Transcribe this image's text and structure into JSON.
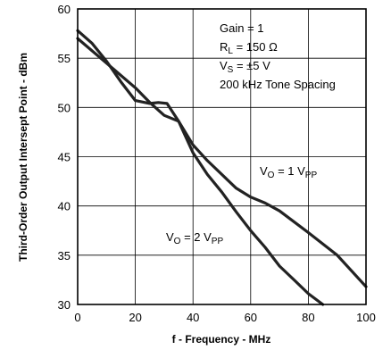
{
  "chart_data": {
    "type": "line",
    "title": "",
    "xlabel": "f - Frequency - MHz",
    "ylabel": "Third-Order Output Intersept Point - dBm",
    "xlim": [
      0,
      100
    ],
    "ylim": [
      30,
      60
    ],
    "x_ticks": [
      0,
      20,
      40,
      60,
      80,
      100
    ],
    "y_ticks": [
      30,
      35,
      40,
      45,
      50,
      55,
      60
    ],
    "grid": true,
    "annotations": {
      "conditions": [
        "Gain = 1",
        "R",
        "L",
        " = 150 Ω",
        "V",
        "S",
        " = ±5 V",
        "200 kHz Tone Spacing"
      ],
      "vo1": [
        "V",
        "O",
        " = 1 V",
        "PP"
      ],
      "vo2": [
        "V",
        "O",
        " = 2 V",
        "PP"
      ]
    },
    "series": [
      {
        "label_ref": "vo1",
        "x": [
          0,
          10,
          20,
          25,
          30,
          35,
          40,
          45,
          50,
          55,
          60,
          65,
          70,
          80,
          90,
          100
        ],
        "y": [
          57,
          54.5,
          52,
          50.5,
          49.2,
          48.6,
          46.2,
          44.6,
          43.2,
          41.8,
          40.9,
          40.3,
          39.5,
          37.3,
          35,
          31.8
        ]
      },
      {
        "label_ref": "vo2",
        "x": [
          0,
          5,
          10,
          15,
          20,
          25,
          28,
          31,
          35,
          40,
          45,
          50,
          55,
          60,
          65,
          70,
          75,
          80,
          85
        ],
        "y": [
          57.8,
          56.5,
          54.7,
          52.6,
          50.7,
          50.4,
          50.5,
          50.4,
          48.6,
          45.4,
          43.2,
          41.4,
          39.4,
          37.5,
          35.8,
          33.9,
          32.5,
          31.1,
          30
        ]
      }
    ]
  }
}
